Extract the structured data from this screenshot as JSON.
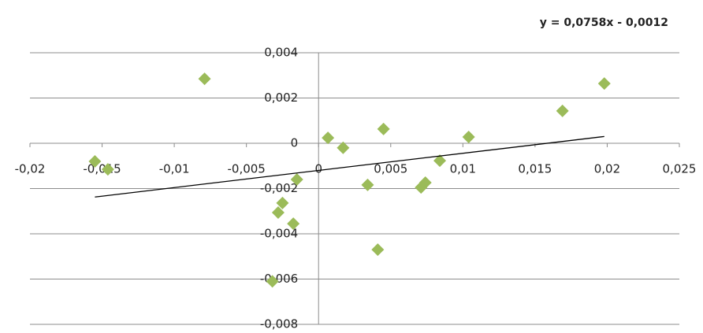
{
  "chart_data": {
    "type": "scatter",
    "series": [
      {
        "name": null,
        "color": "#9bbb59",
        "x": [
          -0.0155,
          -0.0146,
          -0.0079,
          -0.0032,
          -0.0028,
          -0.0025,
          -0.00175,
          -0.0015,
          0.00065,
          0.0017,
          0.0034,
          0.0041,
          0.0045,
          0.0071,
          0.0074,
          0.0084,
          0.0104,
          0.0169,
          0.0198
        ],
        "values": [
          -0.0008,
          -0.00115,
          0.00285,
          -0.0061,
          -0.00306,
          -0.00264,
          -0.00355,
          -0.0016,
          0.00024,
          -0.0002,
          -0.00184,
          -0.0047,
          0.00063,
          -0.00195,
          -0.00174,
          -0.00077,
          0.00028,
          0.00143,
          0.00264
        ]
      }
    ],
    "trendline": {
      "equation": "y = 0,0758x - 0,0012",
      "slope": 0.0758,
      "intercept": -0.0012
    },
    "xlim": [
      -0.02,
      0.025
    ],
    "xticks": [
      {
        "value": -0.02,
        "label": "-0,02"
      },
      {
        "value": -0.015,
        "label": "-0,015"
      },
      {
        "value": -0.01,
        "label": "-0,01"
      },
      {
        "value": -0.005,
        "label": "-0,005"
      },
      0,
      {
        "value": 0.005,
        "label": "0,005"
      },
      {
        "value": 0.01,
        "label": "0,01"
      },
      {
        "value": 0.015,
        "label": "0,015"
      },
      {
        "value": 0.02,
        "label": "0,02"
      },
      {
        "value": 0.025,
        "label": "0,025"
      }
    ],
    "ylim": [
      -0.008,
      0.004
    ],
    "yticks": [
      {
        "value": 0.004,
        "label": "0,004"
      },
      {
        "value": 0.002,
        "label": "0,002"
      },
      0,
      {
        "value": -0.002,
        "label": "-0,002"
      },
      {
        "value": -0.004,
        "label": "-0,004"
      },
      {
        "value": -0.006,
        "label": "-0,006"
      },
      {
        "value": -0.008,
        "label": "-0,008"
      }
    ],
    "grid": true
  }
}
